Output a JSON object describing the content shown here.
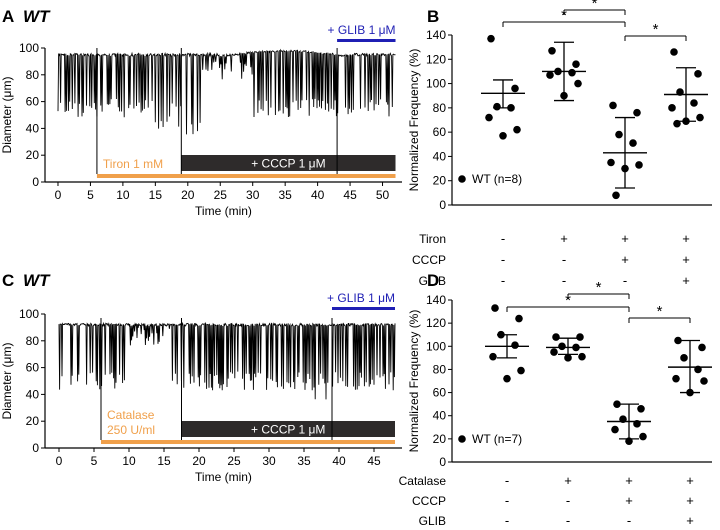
{
  "panels": {
    "A": {
      "letter": "A",
      "title": "WT"
    },
    "B": {
      "letter": "B"
    },
    "C": {
      "letter": "C",
      "title": "WT"
    },
    "D": {
      "letter": "D"
    }
  },
  "chart_data": [
    {
      "id": "A",
      "type": "line",
      "title": "WT",
      "xlabel": "Time (min)",
      "ylabel": "Diameter (μm)",
      "xlim": [
        -2,
        53
      ],
      "ylim": [
        0,
        100
      ],
      "xticks": [
        0,
        5,
        10,
        15,
        20,
        25,
        30,
        35,
        40,
        45,
        50
      ],
      "yticks": [
        0,
        20,
        40,
        60,
        80,
        100
      ],
      "trace": {
        "start": 0,
        "end": 52,
        "baseline_max_diameter": 96,
        "typical_min_diameter": 55
      },
      "treatments": [
        {
          "label": "Tiron 1 mM",
          "start": 6,
          "end": 52,
          "style": "orange-bar",
          "color": "#f0a04b"
        },
        {
          "label": "+ CCCP 1 μM",
          "start": 19,
          "end": 52,
          "style": "dark-box",
          "color": "#2e2b2b"
        },
        {
          "label": "+ GLIB 1 μM",
          "start": 43,
          "end": 52,
          "style": "blue-bar",
          "color": "#1f1fb4"
        }
      ]
    },
    {
      "id": "B",
      "type": "scatter",
      "ylabel": "Normalized Frequency (%)",
      "ylim": [
        0,
        140
      ],
      "yticks": [
        0,
        20,
        40,
        60,
        80,
        100,
        120,
        140
      ],
      "legend": {
        "label": "WT (n=8)",
        "position": "bottom-left"
      },
      "groups": [
        {
          "points": [
            137,
            96,
            81,
            80,
            72,
            62,
            57
          ],
          "mean": 92,
          "sd_low": 80,
          "sd_high": 103
        },
        {
          "points": [
            127,
            116,
            110,
            109,
            107,
            100,
            90
          ],
          "mean": 110,
          "sd_low": 86,
          "sd_high": 134
        },
        {
          "points": [
            82,
            76,
            58,
            51,
            35,
            33,
            30,
            8
          ],
          "mean": 43,
          "sd_low": 14,
          "sd_high": 72
        },
        {
          "points": [
            126,
            108,
            93,
            84,
            80,
            72,
            69,
            67
          ],
          "mean": 91,
          "sd_low": 69,
          "sd_high": 113
        }
      ],
      "significance": [
        {
          "from": 0,
          "to": 2,
          "label": "*"
        },
        {
          "from": 1,
          "to": 2,
          "label": "*"
        },
        {
          "from": 2,
          "to": 3,
          "label": "*"
        }
      ],
      "conditions": [
        {
          "name": "Tiron",
          "values": [
            "-",
            "+",
            "+",
            "+"
          ]
        },
        {
          "name": "CCCP",
          "values": [
            "-",
            "-",
            "+",
            "+"
          ]
        },
        {
          "name": "GLIB",
          "values": [
            "-",
            "-",
            "-",
            "+"
          ]
        }
      ]
    },
    {
      "id": "C",
      "type": "line",
      "title": "WT",
      "xlabel": "Time (min)",
      "ylabel": "Diameter (μm)",
      "xlim": [
        -2,
        49
      ],
      "ylim": [
        0,
        100
      ],
      "xticks": [
        0,
        5,
        10,
        15,
        20,
        25,
        30,
        35,
        40,
        45
      ],
      "yticks": [
        0,
        20,
        40,
        60,
        80,
        100
      ],
      "trace": {
        "start": 0,
        "end": 48,
        "baseline_max_diameter": 93,
        "typical_min_diameter": 50
      },
      "treatments": [
        {
          "label": "Catalase",
          "label2": "250 U/ml",
          "start": 6,
          "end": 48,
          "style": "orange-bar",
          "color": "#f0a04b"
        },
        {
          "label": "+ CCCP 1 μM",
          "start": 17.5,
          "end": 48,
          "style": "dark-box",
          "color": "#2e2b2b"
        },
        {
          "label": "+ GLIB 1 μM",
          "start": 39,
          "end": 48,
          "style": "blue-bar",
          "color": "#1f1fb4"
        }
      ]
    },
    {
      "id": "D",
      "type": "scatter",
      "ylabel": "Normalized Frequency (%)",
      "ylim": [
        0,
        140
      ],
      "yticks": [
        0,
        20,
        40,
        60,
        80,
        100,
        120,
        140
      ],
      "legend": {
        "label": "WT (n=7)",
        "position": "bottom-left"
      },
      "groups": [
        {
          "points": [
            133,
            124,
            110,
            101,
            91,
            79,
            72
          ],
          "mean": 100,
          "sd_low": 90,
          "sd_high": 110
        },
        {
          "points": [
            108,
            108,
            100,
            99,
            95,
            91,
            90
          ],
          "mean": 99,
          "sd_low": 93,
          "sd_high": 107
        },
        {
          "points": [
            50,
            46,
            37,
            33,
            28,
            22,
            18
          ],
          "mean": 35,
          "sd_low": 20,
          "sd_high": 50
        },
        {
          "points": [
            105,
            99,
            90,
            80,
            72,
            70,
            60
          ],
          "mean": 82,
          "sd_low": 60,
          "sd_high": 105
        }
      ],
      "significance": [
        {
          "from": 0,
          "to": 2,
          "label": "*"
        },
        {
          "from": 1,
          "to": 2,
          "label": "*"
        },
        {
          "from": 2,
          "to": 3,
          "label": "*"
        }
      ],
      "conditions": [
        {
          "name": "Catalase",
          "values": [
            "-",
            "+",
            "+",
            "+"
          ]
        },
        {
          "name": "CCCP",
          "values": [
            "-",
            "-",
            "+",
            "+"
          ]
        },
        {
          "name": "GLIB",
          "values": [
            "-",
            "-",
            "-",
            "+"
          ]
        }
      ]
    }
  ]
}
